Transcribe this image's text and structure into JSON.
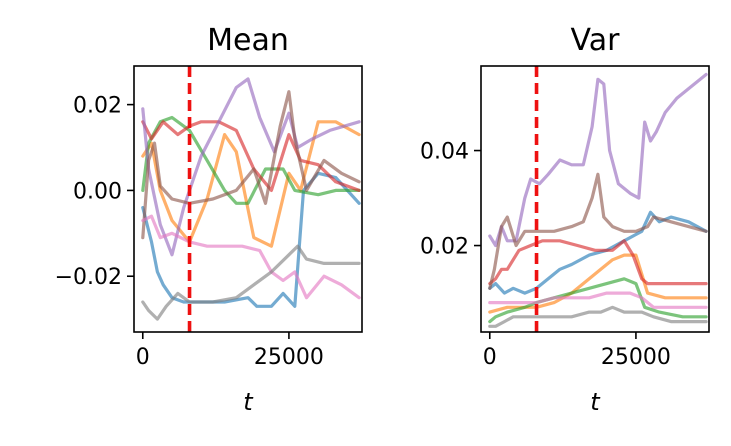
{
  "chart_data": [
    {
      "type": "line",
      "title": "Mean",
      "xlabel": "t",
      "ylabel": "",
      "xlim": [
        -1500,
        37500
      ],
      "ylim": [
        -0.033,
        0.029
      ],
      "xticks": [
        0,
        25000
      ],
      "xtick_labels": [
        "0",
        "25000"
      ],
      "yticks": [
        -0.02,
        0.0,
        0.02
      ],
      "ytick_labels": [
        "−0.02",
        "0.00",
        "0.02"
      ],
      "vline": {
        "x": 8000,
        "color": "#ee1111",
        "style": "dashed"
      },
      "series": [
        {
          "name": "blue",
          "color": "#1f77b4",
          "x": [
            0,
            1500,
            2500,
            3500,
            5000,
            7000,
            10000,
            14000,
            18000,
            19500,
            22000,
            24000,
            26000,
            27500,
            30000,
            33000,
            37000
          ],
          "values": [
            -0.004,
            -0.012,
            -0.019,
            -0.022,
            -0.025,
            -0.026,
            -0.026,
            -0.026,
            -0.025,
            -0.027,
            -0.027,
            -0.024,
            -0.027,
            0.0,
            0.004,
            0.003,
            -0.003
          ]
        },
        {
          "name": "orange",
          "color": "#ff7f0e",
          "x": [
            0,
            1500,
            3000,
            5000,
            8000,
            11000,
            14000,
            16000,
            19000,
            22000,
            25000,
            27000,
            30000,
            33000,
            37000
          ],
          "values": [
            0.008,
            0.011,
            0.0,
            -0.007,
            -0.012,
            -0.002,
            0.013,
            0.009,
            -0.011,
            -0.013,
            0.004,
            0.0,
            0.016,
            0.016,
            0.013
          ]
        },
        {
          "name": "green",
          "color": "#2ca02c",
          "x": [
            0,
            1000,
            3000,
            5000,
            8000,
            11000,
            14000,
            16000,
            18000,
            21000,
            24000,
            26000,
            30000,
            33000,
            37000
          ],
          "values": [
            0.0,
            0.011,
            0.016,
            0.017,
            0.014,
            0.007,
            0.0,
            -0.003,
            -0.003,
            0.005,
            0.005,
            0.0,
            -0.001,
            0.0,
            0.0
          ]
        },
        {
          "name": "red",
          "color": "#d62728",
          "x": [
            0,
            1500,
            3500,
            6000,
            8000,
            10000,
            13000,
            16000,
            19000,
            22000,
            25000,
            27000,
            30000,
            33000,
            37000
          ],
          "values": [
            0.016,
            0.012,
            0.016,
            0.013,
            0.015,
            0.016,
            0.016,
            0.014,
            0.005,
            0.0,
            0.013,
            0.007,
            0.006,
            0.002,
            0.0
          ]
        },
        {
          "name": "purple",
          "color": "#9467bd",
          "x": [
            0,
            1000,
            3000,
            5000,
            7000,
            10000,
            13000,
            16000,
            18000,
            20000,
            22500,
            25000,
            26500,
            29000,
            32000,
            37000
          ],
          "values": [
            0.019,
            0.005,
            -0.008,
            -0.015,
            -0.004,
            0.008,
            0.016,
            0.024,
            0.026,
            0.017,
            0.009,
            0.018,
            0.01,
            0.012,
            0.014,
            0.016
          ]
        },
        {
          "name": "brown",
          "color": "#8c564b",
          "x": [
            0,
            1000,
            2000,
            3000,
            5000,
            8000,
            12000,
            16000,
            19000,
            21000,
            23500,
            25000,
            26000,
            28000,
            31000,
            34000,
            37000
          ],
          "values": [
            -0.011,
            0.007,
            0.011,
            0.001,
            -0.002,
            -0.003,
            -0.002,
            0.0,
            0.005,
            -0.003,
            0.015,
            0.023,
            0.012,
            0.0,
            0.007,
            0.004,
            0.002
          ]
        },
        {
          "name": "pink",
          "color": "#e377c2",
          "x": [
            0,
            1500,
            3000,
            5000,
            8000,
            11000,
            14000,
            17000,
            20000,
            22000,
            24000,
            26000,
            28000,
            31000,
            34000,
            37000
          ],
          "values": [
            -0.007,
            -0.006,
            -0.011,
            -0.01,
            -0.012,
            -0.013,
            -0.013,
            -0.013,
            -0.014,
            -0.019,
            -0.021,
            -0.019,
            -0.025,
            -0.02,
            -0.022,
            -0.025
          ]
        },
        {
          "name": "gray",
          "color": "#7f7f7f",
          "x": [
            0,
            1000,
            2500,
            4000,
            6000,
            8000,
            12000,
            16000,
            19000,
            22000,
            25000,
            26500,
            28000,
            31000,
            34000,
            37000
          ],
          "values": [
            -0.026,
            -0.028,
            -0.03,
            -0.027,
            -0.024,
            -0.026,
            -0.026,
            -0.025,
            -0.022,
            -0.019,
            -0.015,
            -0.013,
            -0.016,
            -0.017,
            -0.017,
            -0.017
          ]
        }
      ]
    },
    {
      "type": "line",
      "title": "Var",
      "xlabel": "t",
      "ylabel": "",
      "xlim": [
        -1500,
        37500
      ],
      "ylim": [
        0.0018,
        0.0578
      ],
      "xticks": [
        0,
        25000
      ],
      "xtick_labels": [
        "0",
        "25000"
      ],
      "yticks": [
        0.02,
        0.04
      ],
      "ytick_labels": [
        "0.02",
        "0.04"
      ],
      "vline": {
        "x": 8000,
        "color": "#ee1111",
        "style": "dashed"
      },
      "series": [
        {
          "name": "blue",
          "color": "#1f77b4",
          "x": [
            0,
            1000,
            2500,
            4000,
            6000,
            8000,
            10000,
            12000,
            14000,
            17000,
            20000,
            23000,
            26000,
            27500,
            29000,
            31000,
            34000,
            37000
          ],
          "values": [
            0.011,
            0.012,
            0.01,
            0.011,
            0.01,
            0.011,
            0.013,
            0.015,
            0.016,
            0.018,
            0.019,
            0.021,
            0.023,
            0.027,
            0.025,
            0.026,
            0.025,
            0.023
          ]
        },
        {
          "name": "orange",
          "color": "#ff7f0e",
          "x": [
            0,
            3000,
            6000,
            8000,
            11000,
            14000,
            17000,
            19000,
            21000,
            23000,
            25000,
            27000,
            30000,
            33000,
            37000
          ],
          "values": [
            0.006,
            0.007,
            0.007,
            0.007,
            0.008,
            0.01,
            0.013,
            0.015,
            0.017,
            0.018,
            0.018,
            0.01,
            0.009,
            0.009,
            0.009
          ]
        },
        {
          "name": "green",
          "color": "#2ca02c",
          "x": [
            0,
            1000,
            3000,
            6000,
            8000,
            11000,
            14000,
            17000,
            20000,
            23000,
            25000,
            26500,
            29000,
            33000,
            37000
          ],
          "values": [
            0.004,
            0.005,
            0.006,
            0.007,
            0.008,
            0.009,
            0.01,
            0.011,
            0.012,
            0.013,
            0.012,
            0.007,
            0.006,
            0.005,
            0.005
          ]
        },
        {
          "name": "red",
          "color": "#d62728",
          "x": [
            0,
            1000,
            2000,
            3000,
            5000,
            7000,
            9000,
            12000,
            15000,
            18000,
            21000,
            23000,
            24500,
            26000,
            27000,
            29000,
            33000,
            37000
          ],
          "values": [
            0.012,
            0.013,
            0.015,
            0.015,
            0.019,
            0.02,
            0.021,
            0.021,
            0.02,
            0.019,
            0.019,
            0.021,
            0.018,
            0.013,
            0.012,
            0.012,
            0.012,
            0.012
          ]
        },
        {
          "name": "purple",
          "color": "#9467bd",
          "x": [
            0,
            1000,
            2000,
            3000,
            4500,
            6000,
            7000,
            8500,
            10000,
            12000,
            14000,
            16000,
            17500,
            18500,
            19500,
            20500,
            22000,
            24000,
            25500,
            26500,
            27500,
            28500,
            30000,
            32000,
            34000,
            37000
          ],
          "values": [
            0.022,
            0.02,
            0.024,
            0.021,
            0.021,
            0.03,
            0.034,
            0.033,
            0.035,
            0.038,
            0.037,
            0.037,
            0.045,
            0.055,
            0.054,
            0.04,
            0.033,
            0.031,
            0.03,
            0.046,
            0.042,
            0.044,
            0.048,
            0.051,
            0.053,
            0.056
          ]
        },
        {
          "name": "brown",
          "color": "#8c564b",
          "x": [
            0,
            800,
            2000,
            3000,
            4500,
            6000,
            8000,
            11000,
            14000,
            16000,
            17500,
            18500,
            19500,
            21000,
            23000,
            25000,
            27000,
            28000,
            31000,
            34000,
            37000
          ],
          "values": [
            0.011,
            0.015,
            0.024,
            0.026,
            0.02,
            0.023,
            0.023,
            0.023,
            0.024,
            0.025,
            0.03,
            0.035,
            0.026,
            0.024,
            0.023,
            0.023,
            0.024,
            0.026,
            0.025,
            0.024,
            0.023
          ]
        },
        {
          "name": "pink",
          "color": "#e377c2",
          "x": [
            0,
            3000,
            6000,
            8000,
            11000,
            14000,
            17000,
            20000,
            22000,
            24000,
            26000,
            28000,
            31000,
            34000,
            37000
          ],
          "values": [
            0.008,
            0.008,
            0.008,
            0.008,
            0.009,
            0.009,
            0.009,
            0.01,
            0.01,
            0.01,
            0.009,
            0.007,
            0.007,
            0.007,
            0.007
          ]
        },
        {
          "name": "gray",
          "color": "#7f7f7f",
          "x": [
            0,
            1000,
            2500,
            4000,
            6000,
            8000,
            11000,
            14000,
            17000,
            19000,
            21000,
            23000,
            26000,
            28000,
            31000,
            34000,
            37000
          ],
          "values": [
            0.003,
            0.003,
            0.004,
            0.005,
            0.005,
            0.005,
            0.005,
            0.005,
            0.006,
            0.006,
            0.007,
            0.006,
            0.006,
            0.005,
            0.004,
            0.004,
            0.004
          ]
        }
      ]
    }
  ]
}
